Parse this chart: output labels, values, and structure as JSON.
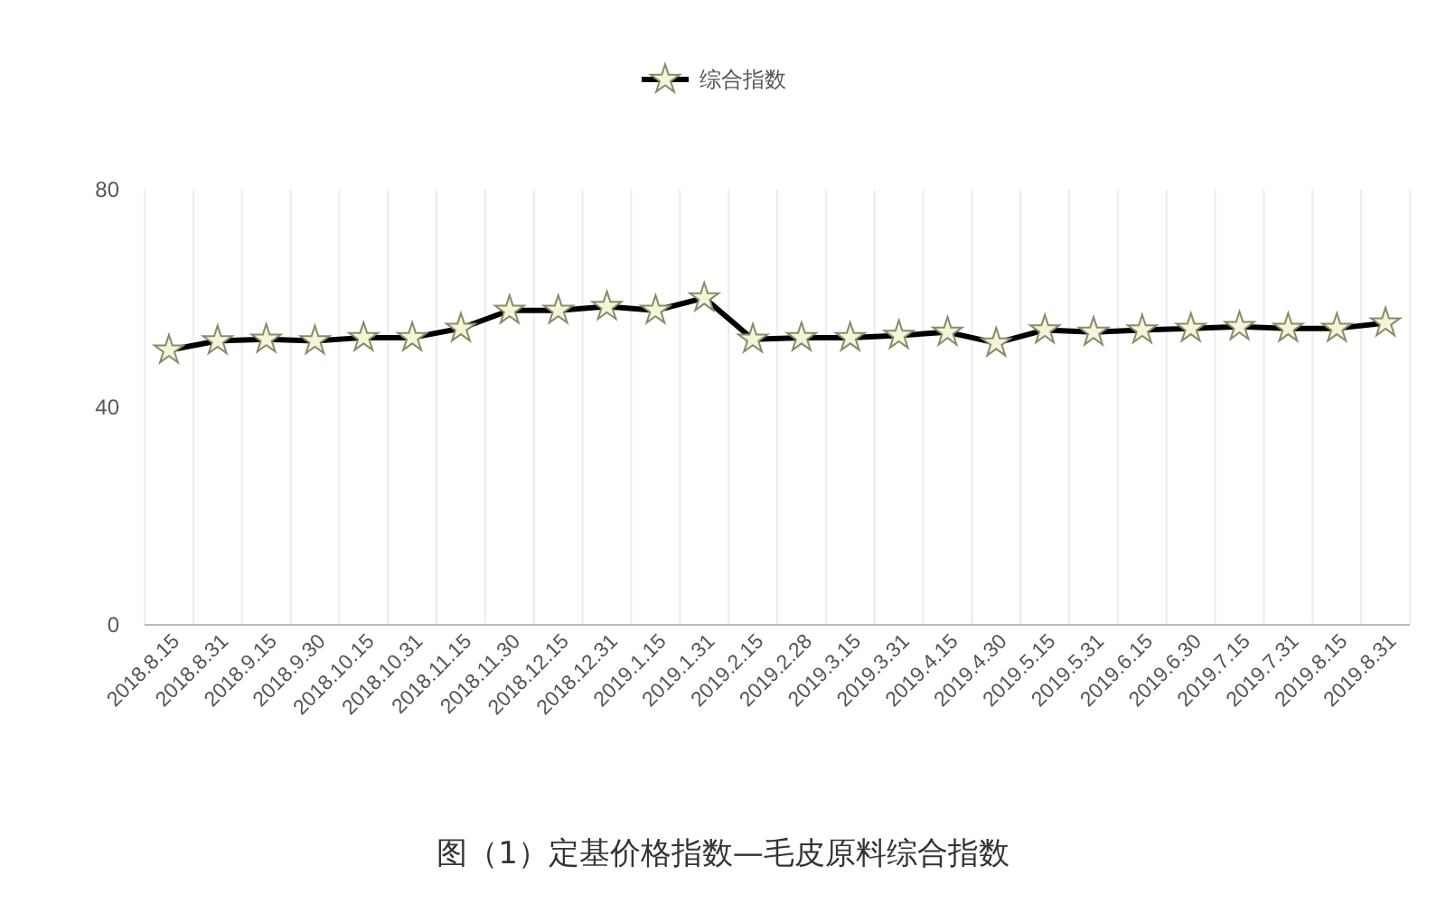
{
  "chart_data": {
    "type": "line",
    "annotations": [
      "图（1）定基价格指数—毛皮原料综合指数"
    ],
    "categories": [
      "2018.8.15",
      "2018.8.31",
      "2018.9.15",
      "2018.9.30",
      "2018.10.15",
      "2018.10.31",
      "2018.11.15",
      "2018.11.30",
      "2018.12.15",
      "2018.12.31",
      "2019.1.15",
      "2019.1.31",
      "2019.2.15",
      "2019.2.28",
      "2019.3.15",
      "2019.3.31",
      "2019.4.15",
      "2019.4.30",
      "2019.5.15",
      "2019.5.31",
      "2019.6.15",
      "2019.6.30",
      "2019.7.15",
      "2019.7.31",
      "2019.8.15",
      "2019.8.31"
    ],
    "series": [
      {
        "name": "综合指数",
        "color": "#000000",
        "values": [
          50.5,
          52.2,
          52.5,
          52.2,
          52.8,
          52.8,
          54.5,
          57.8,
          57.8,
          58.5,
          57.8,
          60.1,
          52.5,
          52.8,
          52.8,
          53.2,
          53.8,
          51.8,
          54.2,
          53.8,
          54.2,
          54.5,
          54.8,
          54.5,
          54.5,
          55.5
        ]
      }
    ],
    "ylim": [
      0,
      80
    ],
    "yticks": [
      0,
      40,
      80
    ],
    "grid": "x",
    "legend": "top",
    "marker": "star",
    "line_style": "solid"
  }
}
